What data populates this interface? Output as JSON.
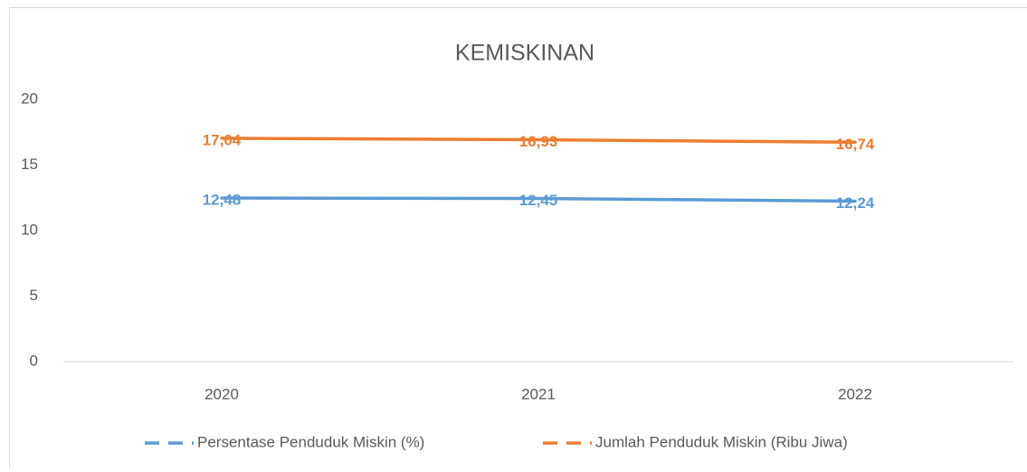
{
  "chart_data": {
    "type": "line",
    "title": "KEMISKINAN",
    "categories": [
      "2020",
      "2021",
      "2022"
    ],
    "series": [
      {
        "name": "Persentase Penduduk Miskin (%)",
        "color": "#5b9bd5",
        "values": [
          12.48,
          12.45,
          12.24
        ],
        "value_labels": [
          "12,48",
          "12,45",
          "12,24"
        ]
      },
      {
        "name": "Jumlah Penduduk Miskin (Ribu Jiwa)",
        "color": "#ed7d31",
        "values": [
          17.04,
          16.93,
          16.74
        ],
        "value_labels": [
          "17,04",
          "16,93",
          "16,74"
        ]
      }
    ],
    "ylim": [
      0,
      20
    ],
    "yticks": [
      0,
      5,
      10,
      15,
      20
    ],
    "grid": false,
    "legend": "bottom"
  }
}
